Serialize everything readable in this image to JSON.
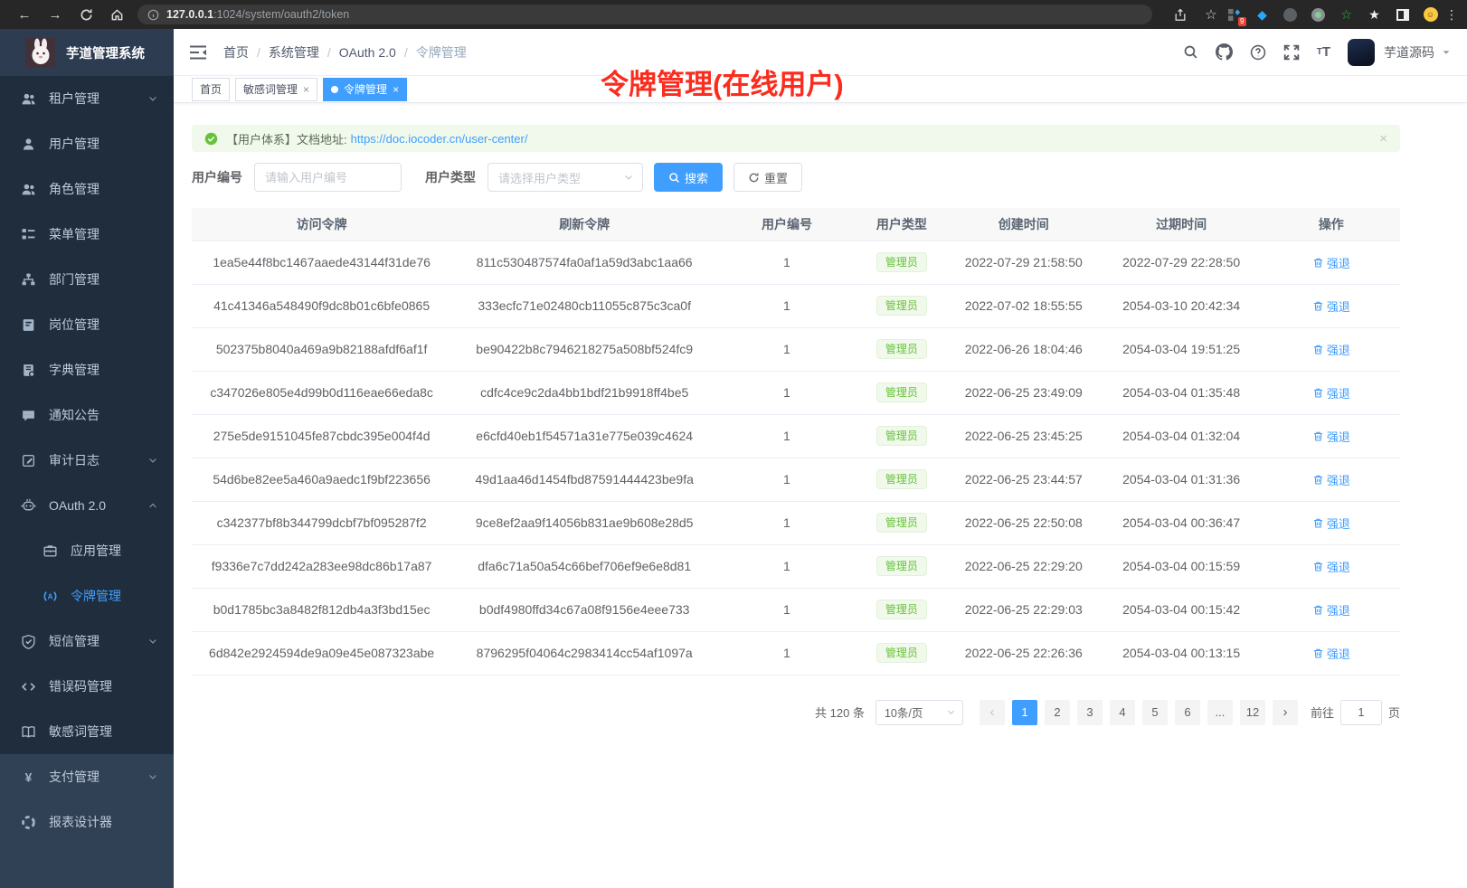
{
  "colors": {
    "accent_blue": "#409eff",
    "success_green": "#67c23a",
    "annotation_red": "#fb2c1d",
    "sidebar_dark": "#1f2d3d",
    "sidebar_light": "#304156",
    "tag_active_bg": "#409eff"
  },
  "ui": {
    "close_glyph": "×"
  },
  "browser": {
    "url_host": "127.0.0.1",
    "url_rest": ":1024/system/oauth2/token",
    "extension_badge": "9",
    "icons": [
      "back-icon",
      "forward-icon",
      "reload-icon",
      "home-icon",
      "info-icon",
      "share-icon",
      "bookmark-star-icon",
      "extensions-grid-icon",
      "gem-icon",
      "dark-circle-icon",
      "record-circle-icon",
      "green-star-icon",
      "white-star-icon",
      "side-panel-icon",
      "emoji-face-icon",
      "kebab-menu-icon"
    ]
  },
  "sidebar": {
    "logo_title": "芋道管理系统",
    "items": [
      {
        "icon": "users-icon",
        "label": "租户管理",
        "chevron": "down",
        "section": "dark"
      },
      {
        "icon": "user-icon",
        "label": "用户管理",
        "section": "dark"
      },
      {
        "icon": "role-icon",
        "label": "角色管理",
        "section": "dark"
      },
      {
        "icon": "menu-tree-icon",
        "label": "菜单管理",
        "section": "dark"
      },
      {
        "icon": "org-chart-icon",
        "label": "部门管理",
        "section": "dark"
      },
      {
        "icon": "post-badge-icon",
        "label": "岗位管理",
        "section": "dark"
      },
      {
        "icon": "dict-book-icon",
        "label": "字典管理",
        "section": "dark"
      },
      {
        "icon": "notice-bubble-icon",
        "label": "通知公告",
        "section": "dark"
      },
      {
        "icon": "audit-log-icon",
        "label": "审计日志",
        "chevron": "down",
        "section": "dark"
      },
      {
        "icon": "oauth-robot-icon",
        "label": "OAuth 2.0",
        "chevron": "up",
        "section": "dark"
      },
      {
        "icon": "app-briefcase-icon",
        "label": "应用管理",
        "indent": true,
        "section": "dark"
      },
      {
        "icon": "token-signal-icon",
        "label": "令牌管理",
        "indent": true,
        "active": true,
        "section": "dark"
      },
      {
        "icon": "shield-icon",
        "label": "短信管理",
        "chevron": "down",
        "section": "dark"
      },
      {
        "icon": "code-icon",
        "label": "错误码管理",
        "section": "dark"
      },
      {
        "icon": "open-book-icon",
        "label": "敏感词管理",
        "section": "dark"
      },
      {
        "icon": "yen-icon",
        "label": "支付管理",
        "chevron": "down",
        "section": "light"
      },
      {
        "icon": "report-icon",
        "label": "报表设计器",
        "section": "light"
      }
    ]
  },
  "header": {
    "breadcrumb": [
      "首页",
      "系统管理",
      "OAuth 2.0",
      "令牌管理"
    ],
    "separator": "/",
    "user_name": "芋道源码",
    "right_icons": [
      "search-icon",
      "github-icon",
      "help-icon",
      "fullscreen-icon",
      "font-size-icon",
      "avatar",
      "caret-down-icon"
    ]
  },
  "tabs": [
    {
      "label": "首页",
      "closable": false,
      "active": false
    },
    {
      "label": "敏感词管理",
      "closable": true,
      "active": false
    },
    {
      "label": "令牌管理",
      "closable": true,
      "active": true
    }
  ],
  "annotation": {
    "text": "令牌管理(在线用户)"
  },
  "alert": {
    "text": "【用户体系】文档地址:",
    "link": "https://doc.iocoder.cn/user-center/"
  },
  "filters": {
    "user_id_label": "用户编号",
    "user_id_placeholder": "请输入用户编号",
    "user_type_label": "用户类型",
    "user_type_placeholder": "请选择用户类型",
    "search_label": "搜索",
    "reset_label": "重置"
  },
  "table": {
    "columns": [
      "访问令牌",
      "刷新令牌",
      "用户编号",
      "用户类型",
      "创建时间",
      "过期时间",
      "操作"
    ],
    "user_type_label": "管理员",
    "action_label": "强退",
    "rows": [
      [
        "1ea5e44f8bc1467aaede43144f31de76",
        "811c530487574fa0af1a59d3abc1aa66",
        "1",
        "2022-07-29 21:58:50",
        "2022-07-29 22:28:50"
      ],
      [
        "41c41346a548490f9dc8b01c6bfe0865",
        "333ecfc71e02480cb11055c875c3ca0f",
        "1",
        "2022-07-02 18:55:55",
        "2054-03-10 20:42:34"
      ],
      [
        "502375b8040a469a9b82188afdf6af1f",
        "be90422b8c7946218275a508bf524fc9",
        "1",
        "2022-06-26 18:04:46",
        "2054-03-04 19:51:25"
      ],
      [
        "c347026e805e4d99b0d116eae66eda8c",
        "cdfc4ce9c2da4bb1bdf21b9918ff4be5",
        "1",
        "2022-06-25 23:49:09",
        "2054-03-04 01:35:48"
      ],
      [
        "275e5de9151045fe87cbdc395e004f4d",
        "e6cfd40eb1f54571a31e775e039c4624",
        "1",
        "2022-06-25 23:45:25",
        "2054-03-04 01:32:04"
      ],
      [
        "54d6be82ee5a460a9aedc1f9bf223656",
        "49d1aa46d1454fbd87591444423be9fa",
        "1",
        "2022-06-25 23:44:57",
        "2054-03-04 01:31:36"
      ],
      [
        "c342377bf8b344799dcbf7bf095287f2",
        "9ce8ef2aa9f14056b831ae9b608e28d5",
        "1",
        "2022-06-25 22:50:08",
        "2054-03-04 00:36:47"
      ],
      [
        "f9336e7c7dd242a283ee98dc86b17a87",
        "dfa6c71a50a54c66bef706ef9e6e8d81",
        "1",
        "2022-06-25 22:29:20",
        "2054-03-04 00:15:59"
      ],
      [
        "b0d1785bc3a8482f812db4a3f3bd15ec",
        "b0df4980ffd34c67a08f9156e4eee733",
        "1",
        "2022-06-25 22:29:03",
        "2054-03-04 00:15:42"
      ],
      [
        "6d842e2924594de9a09e45e087323abe",
        "8796295f04064c2983414cc54af1097a",
        "1",
        "2022-06-25 22:26:36",
        "2054-03-04 00:13:15"
      ]
    ]
  },
  "pagination": {
    "total_text": "共 120 条",
    "page_size": "10条/页",
    "pages": [
      "1",
      "2",
      "3",
      "4",
      "5",
      "6",
      "...",
      "12"
    ],
    "active_page": "1",
    "prev_glyph": "‹",
    "next_glyph": "›",
    "goto_label": "前往",
    "goto_value": "1",
    "goto_suffix": "页"
  }
}
